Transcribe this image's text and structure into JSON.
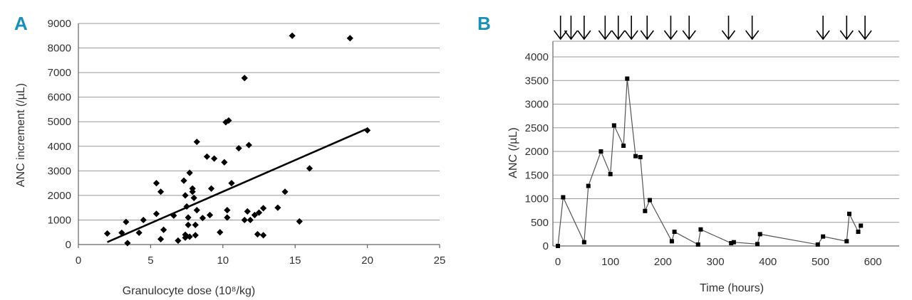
{
  "chart_data": [
    {
      "panel": "A",
      "type": "scatter",
      "xlabel": "Granulocyte dose (10⁸/kg)",
      "ylabel": "ANC increment (/µL)",
      "xlim": [
        0,
        25
      ],
      "ylim": [
        0,
        9000
      ],
      "xticks": [
        0,
        5,
        10,
        15,
        20,
        25
      ],
      "yticks": [
        0,
        1000,
        2000,
        3000,
        4000,
        5000,
        6000,
        7000,
        8000,
        9000
      ],
      "grid": true,
      "trendline": {
        "x": [
          2,
          20
        ],
        "y": [
          100,
          4720
        ]
      },
      "points": [
        [
          2.0,
          450
        ],
        [
          3.0,
          480
        ],
        [
          3.3,
          920
        ],
        [
          3.4,
          60
        ],
        [
          4.2,
          480
        ],
        [
          4.5,
          1000
        ],
        [
          5.4,
          2500
        ],
        [
          5.4,
          1250
        ],
        [
          5.7,
          2150
        ],
        [
          5.7,
          220
        ],
        [
          5.9,
          600
        ],
        [
          6.6,
          1180
        ],
        [
          6.9,
          160
        ],
        [
          7.3,
          2600
        ],
        [
          7.4,
          2000
        ],
        [
          7.4,
          400
        ],
        [
          7.4,
          280
        ],
        [
          7.5,
          1550
        ],
        [
          7.6,
          1100
        ],
        [
          7.6,
          800
        ],
        [
          7.7,
          2920
        ],
        [
          7.7,
          320
        ],
        [
          7.9,
          2280
        ],
        [
          7.9,
          2150
        ],
        [
          8.0,
          1900
        ],
        [
          8.1,
          800
        ],
        [
          8.1,
          380
        ],
        [
          8.2,
          1400
        ],
        [
          8.2,
          4180
        ],
        [
          8.6,
          1080
        ],
        [
          8.9,
          3580
        ],
        [
          9.1,
          1200
        ],
        [
          9.2,
          2280
        ],
        [
          9.4,
          3500
        ],
        [
          9.8,
          500
        ],
        [
          10.1,
          3350
        ],
        [
          10.2,
          4980
        ],
        [
          10.3,
          1400
        ],
        [
          10.3,
          1100
        ],
        [
          10.4,
          5050
        ],
        [
          10.6,
          2500
        ],
        [
          11.1,
          3920
        ],
        [
          11.5,
          6780
        ],
        [
          11.5,
          1000
        ],
        [
          11.7,
          1350
        ],
        [
          11.8,
          4050
        ],
        [
          11.9,
          1000
        ],
        [
          12.2,
          1200
        ],
        [
          12.4,
          420
        ],
        [
          12.5,
          1300
        ],
        [
          12.8,
          1480
        ],
        [
          12.8,
          380
        ],
        [
          13.8,
          1500
        ],
        [
          14.3,
          2150
        ],
        [
          14.8,
          8500
        ],
        [
          15.3,
          940
        ],
        [
          16.0,
          3100
        ],
        [
          18.8,
          8400
        ],
        [
          20.0,
          4650
        ]
      ]
    },
    {
      "panel": "B",
      "type": "line",
      "xlabel": "Time (hours)",
      "ylabel": "ANC (/µL)",
      "xlim": [
        0,
        650
      ],
      "ylim": [
        0,
        4000
      ],
      "xticks": [
        0,
        100,
        200,
        300,
        400,
        500,
        600
      ],
      "yticks": [
        0,
        500,
        1000,
        1500,
        2000,
        2500,
        3000,
        3500,
        4000
      ],
      "grid": true,
      "arrow_times": [
        5,
        25,
        50,
        90,
        115,
        140,
        170,
        215,
        250,
        325,
        370,
        505,
        550,
        585
      ],
      "x": [
        0,
        10,
        50,
        58,
        82,
        100,
        107,
        125,
        132,
        148,
        157,
        166,
        175,
        217,
        222,
        267,
        272,
        330,
        335,
        380,
        385,
        495,
        505,
        550,
        555,
        572,
        577
      ],
      "y": [
        0,
        1030,
        80,
        1270,
        2000,
        1520,
        2550,
        2120,
        3540,
        1900,
        1880,
        740,
        970,
        100,
        300,
        30,
        350,
        60,
        80,
        40,
        250,
        30,
        200,
        100,
        680,
        300,
        430
      ]
    }
  ]
}
